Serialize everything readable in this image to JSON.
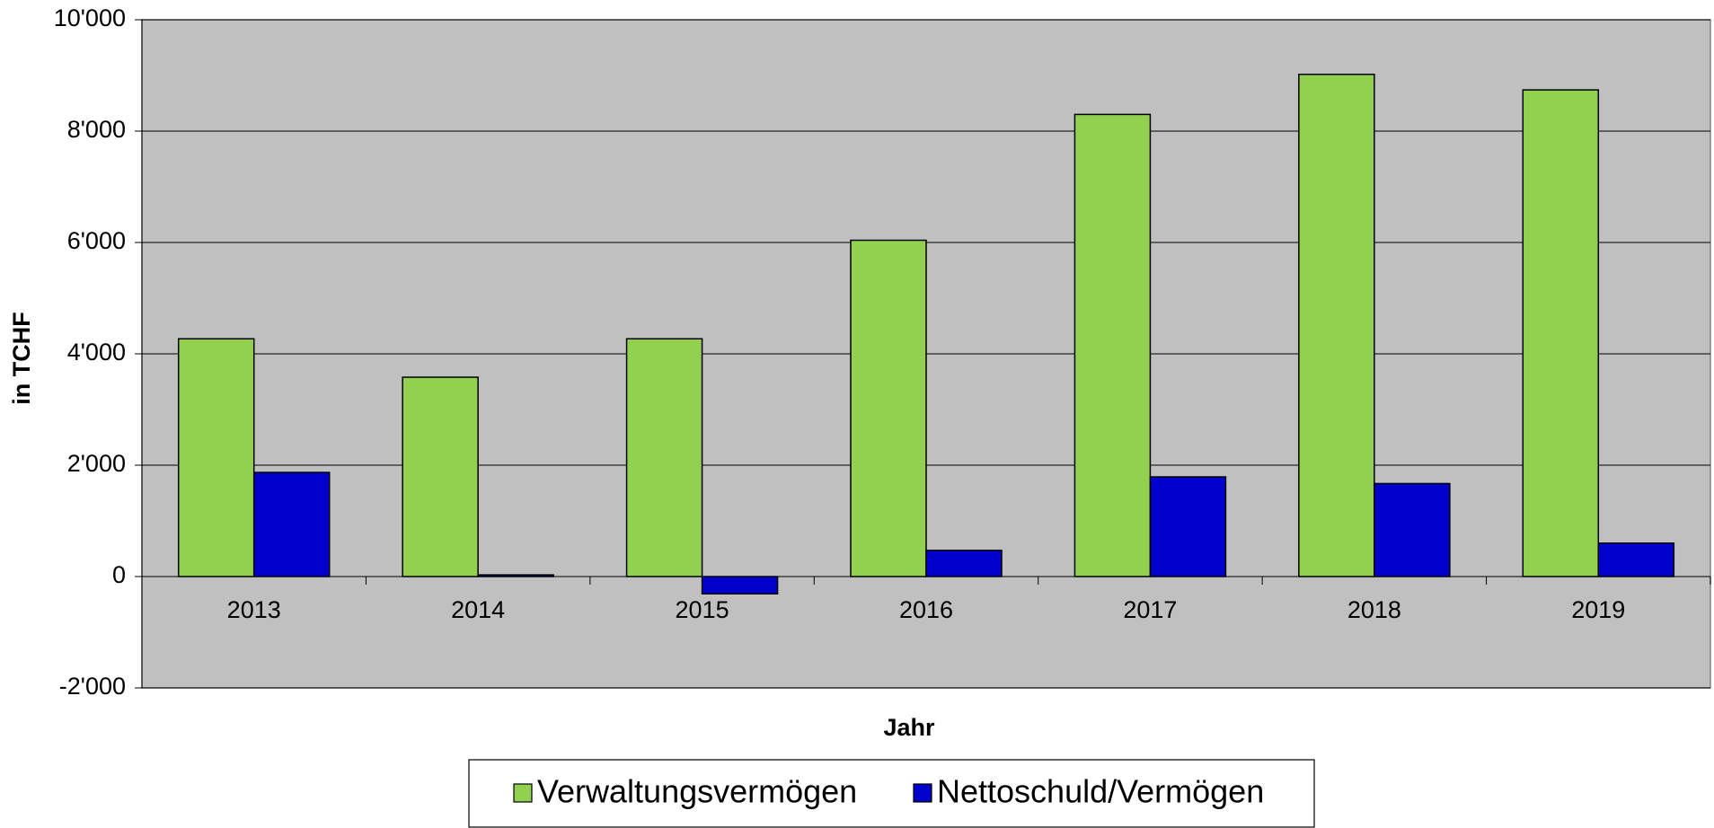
{
  "chart_data": {
    "type": "bar",
    "y_label": "in TCHF",
    "x_label": "Jahr",
    "categories": [
      "2013",
      "2014",
      "2015",
      "2016",
      "2017",
      "2018",
      "2019"
    ],
    "series": [
      {
        "name": "Verwaltungsvermögen",
        "color": "#92d050",
        "values": [
          4270,
          3580,
          4270,
          6040,
          8300,
          9020,
          8740
        ]
      },
      {
        "name": "Nettoschuld/Vermögen",
        "color": "#0000cc",
        "values": [
          1870,
          30,
          -310,
          470,
          1790,
          1670,
          600
        ]
      }
    ],
    "ylim": [
      -2000,
      10000
    ],
    "yticks": [
      {
        "value": -2000,
        "label": "-2'000"
      },
      0,
      {
        "value": 2000,
        "label": "2'000"
      },
      {
        "value": 4000,
        "label": "4'000"
      },
      {
        "value": 6000,
        "label": "6'000"
      },
      {
        "value": 8000,
        "label": "8'000"
      },
      {
        "value": 10000,
        "label": "10'000"
      }
    ],
    "grid": true,
    "legend": "bottom"
  }
}
